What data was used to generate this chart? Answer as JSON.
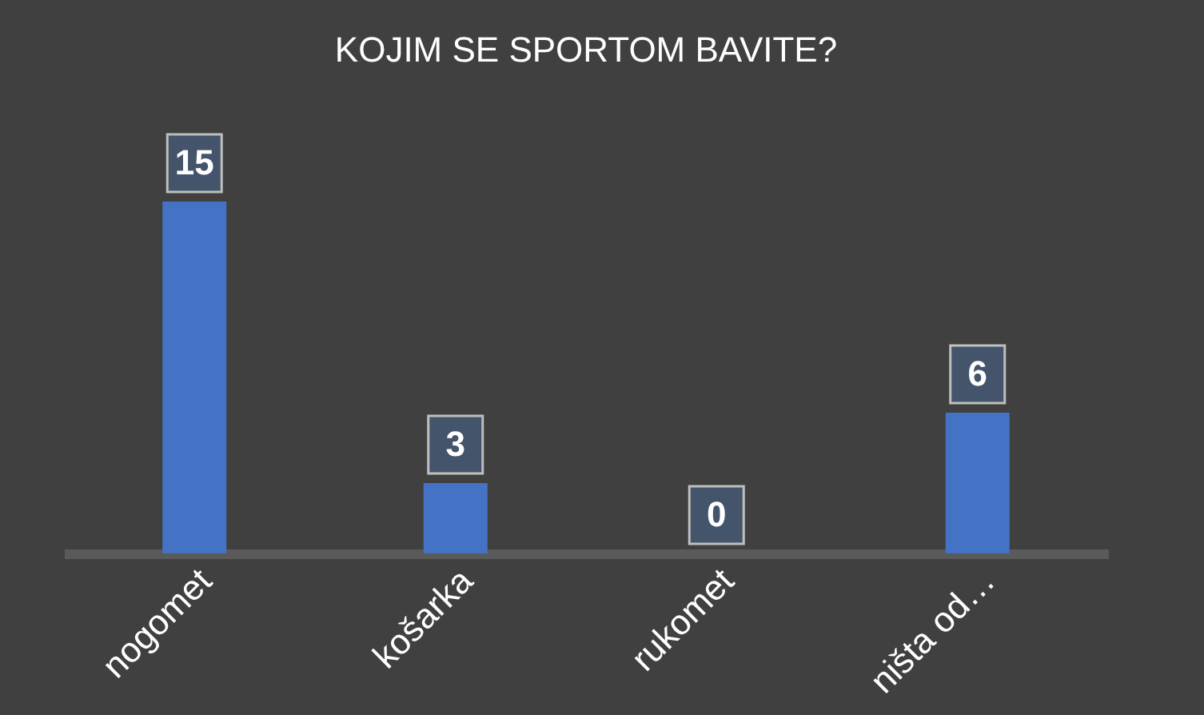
{
  "chart_data": {
    "type": "bar",
    "title": "KOJIM SE SPORTOM BAVITE?",
    "categories": [
      "nogomet",
      "košarka",
      "rukomet",
      "ništa od…"
    ],
    "values": [
      15,
      3,
      0,
      6
    ],
    "color": "#4472c4",
    "data_labels": true
  }
}
